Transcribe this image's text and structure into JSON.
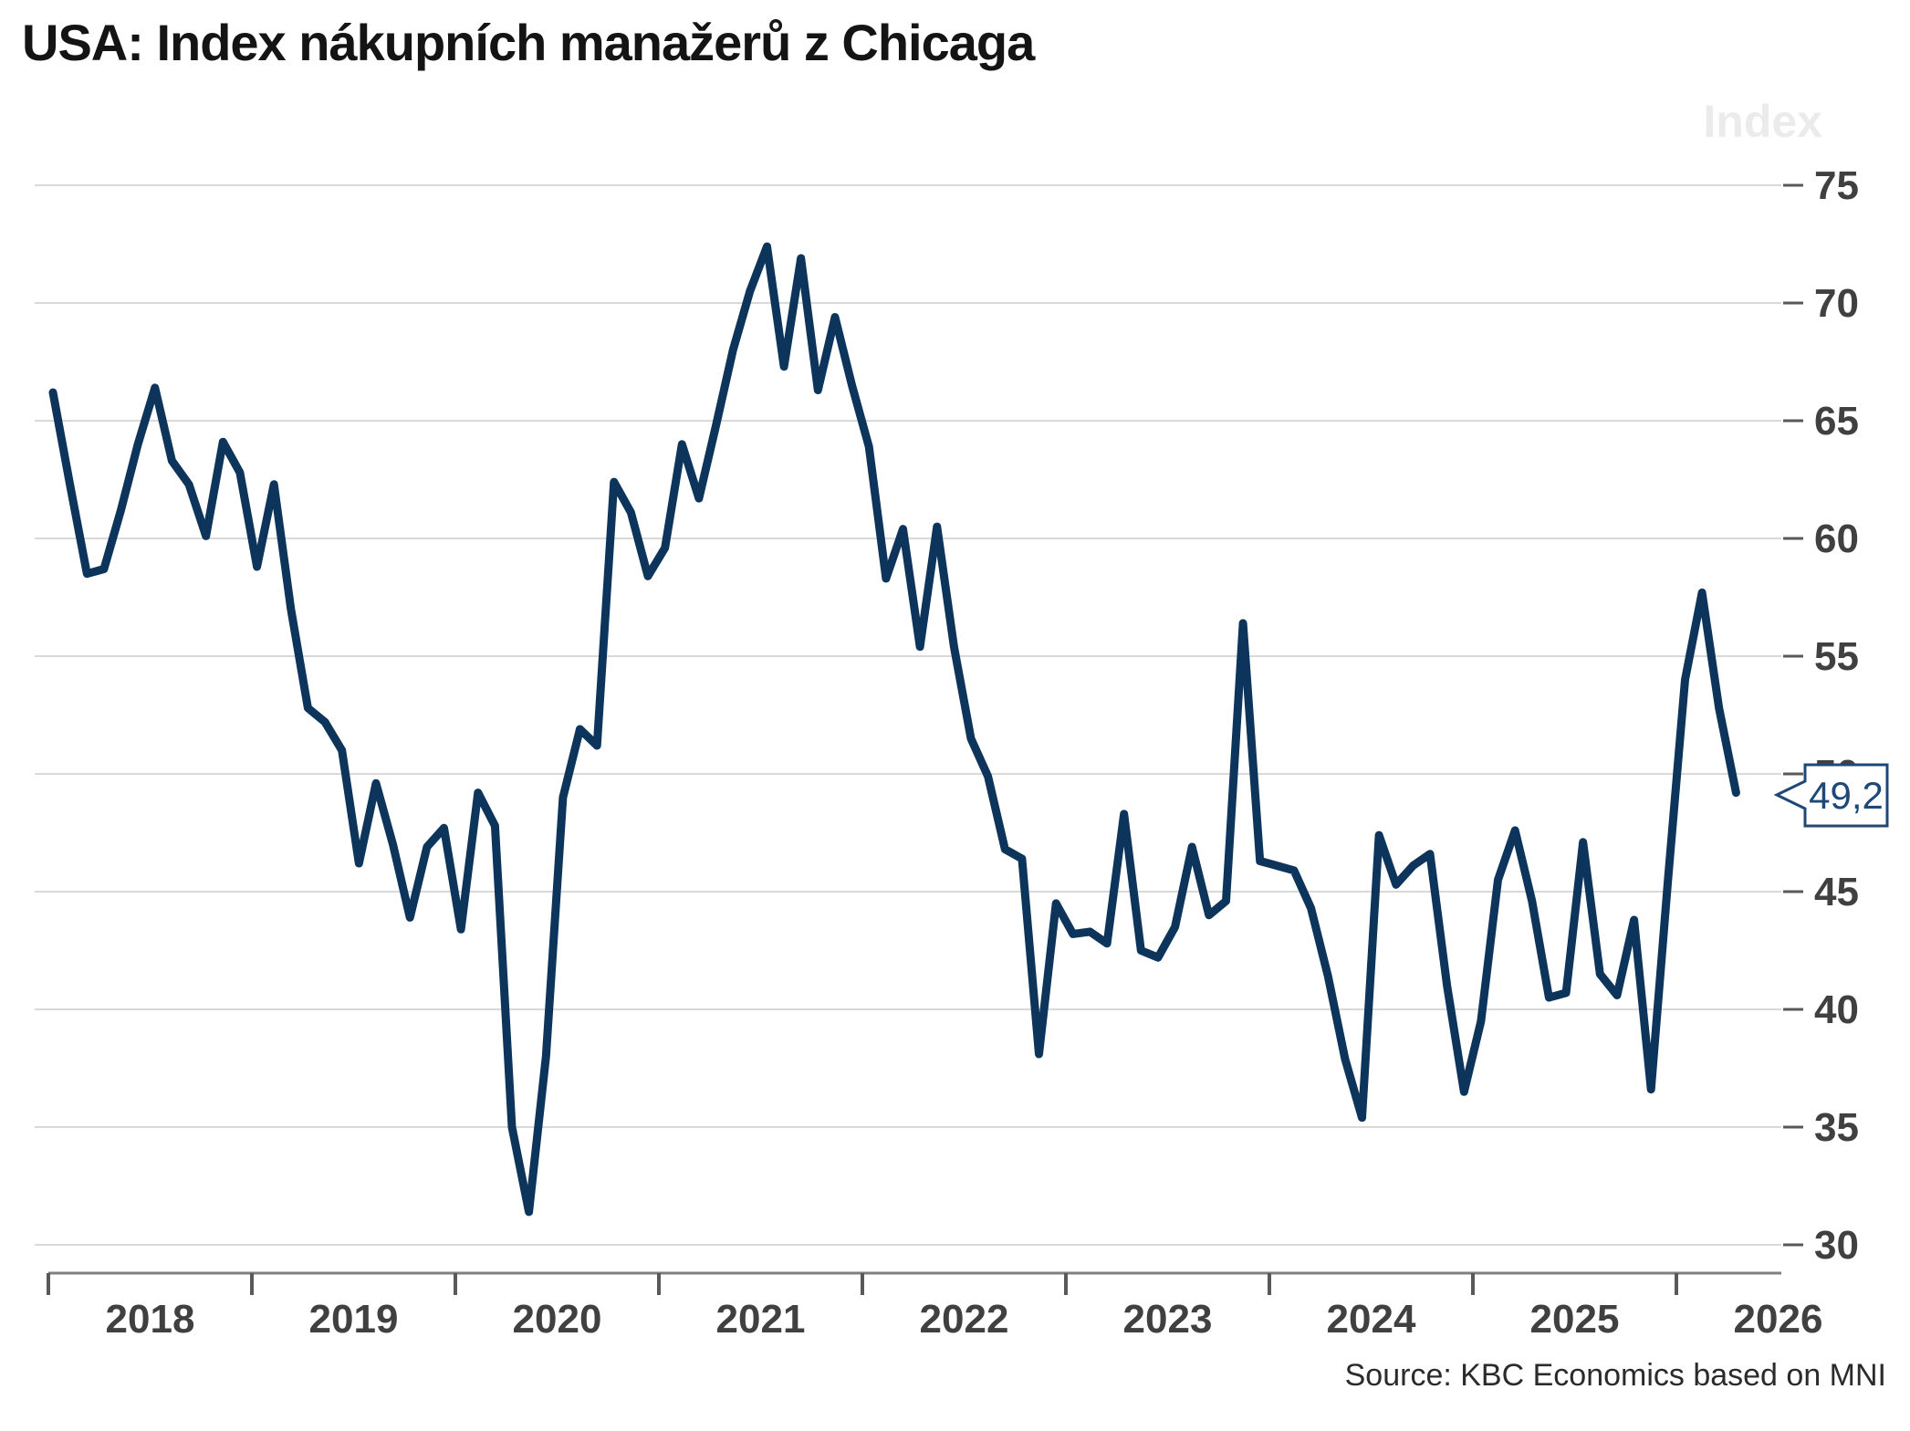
{
  "title": "USA: Index nákupních manažerů z Chicaga",
  "axis_unit": "Index",
  "source": "Source: KBC Economics based on MNI",
  "callout": {
    "label": "49,2"
  },
  "chart_data": {
    "type": "line",
    "series_name": "Chicago Purchasing Managers Index",
    "frequency": "monthly",
    "start_year": 2018,
    "values": [
      66.2,
      62.3,
      58.5,
      58.7,
      61.2,
      64.0,
      66.4,
      63.3,
      62.3,
      60.1,
      64.1,
      62.8,
      58.8,
      62.3,
      57.0,
      52.8,
      52.2,
      51.0,
      46.2,
      49.6,
      47.0,
      43.9,
      46.9,
      47.7,
      43.4,
      49.2,
      47.8,
      35.0,
      31.4,
      38.0,
      49.0,
      51.9,
      51.2,
      62.4,
      61.1,
      58.4,
      59.6,
      64.0,
      61.7,
      64.8,
      68.0,
      70.5,
      72.4,
      67.3,
      71.9,
      66.3,
      69.4,
      66.5,
      63.9,
      58.3,
      60.4,
      55.4,
      60.5,
      55.4,
      51.5,
      49.9,
      46.8,
      46.4,
      38.1,
      44.5,
      43.2,
      43.3,
      42.8,
      48.3,
      42.5,
      42.2,
      43.5,
      46.9,
      44.0,
      44.6,
      56.4,
      46.3,
      46.1,
      45.9,
      44.3,
      41.4,
      37.9,
      35.4,
      47.4,
      45.3,
      46.1,
      46.6,
      41.0,
      36.5,
      39.5,
      45.5,
      47.6,
      44.6,
      40.5,
      40.7,
      47.1,
      41.5,
      40.6,
      43.8,
      36.6,
      45.5,
      54.0,
      57.7,
      52.8,
      49.2
    ],
    "last_value": 49.2,
    "last_value_label": "49,2",
    "y_ticks": [
      75,
      70,
      65,
      60,
      55,
      50,
      45,
      40,
      35,
      30
    ],
    "ylim": [
      30,
      75
    ],
    "x_tick_years": [
      "2018",
      "2019",
      "2020",
      "2021",
      "2022",
      "2023",
      "2024",
      "2025",
      "2026"
    ],
    "grid": true,
    "legend_position": "none",
    "line_color": "#0d355c",
    "grid_color": "#d9d9d9",
    "axis_color": "#7f7f7f",
    "tick_color": "#595959",
    "label_color": "#404040",
    "callout_color": "#1e4976"
  }
}
